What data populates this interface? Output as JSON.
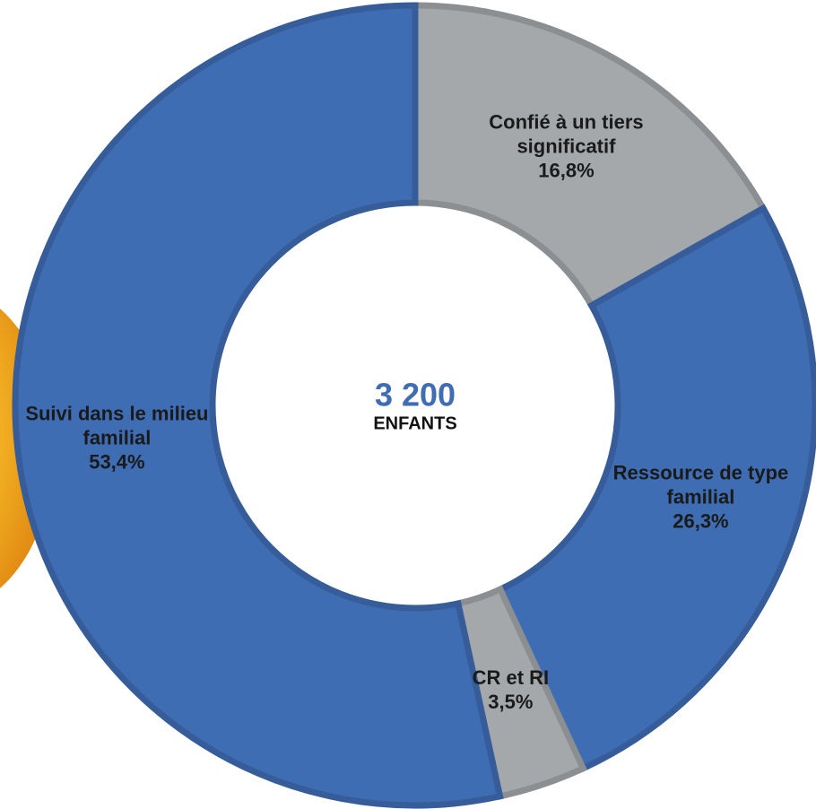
{
  "chart_data": {
    "type": "donut",
    "categories": [
      "Confié à un tiers significatif",
      "Ressource de type familial",
      "CR et RI",
      "Suivi dans le milieu familial"
    ],
    "values": [
      16.8,
      26.3,
      3.5,
      53.4
    ],
    "value_labels": [
      "16,8%",
      "26,3%",
      "3,5%",
      "53,4%"
    ],
    "colors": [
      "#a5a8ab",
      "#3f6db4",
      "#a5a8ab",
      "#3f6db4"
    ],
    "center_value": "3 200",
    "center_caption": "ENFANTS"
  }
}
